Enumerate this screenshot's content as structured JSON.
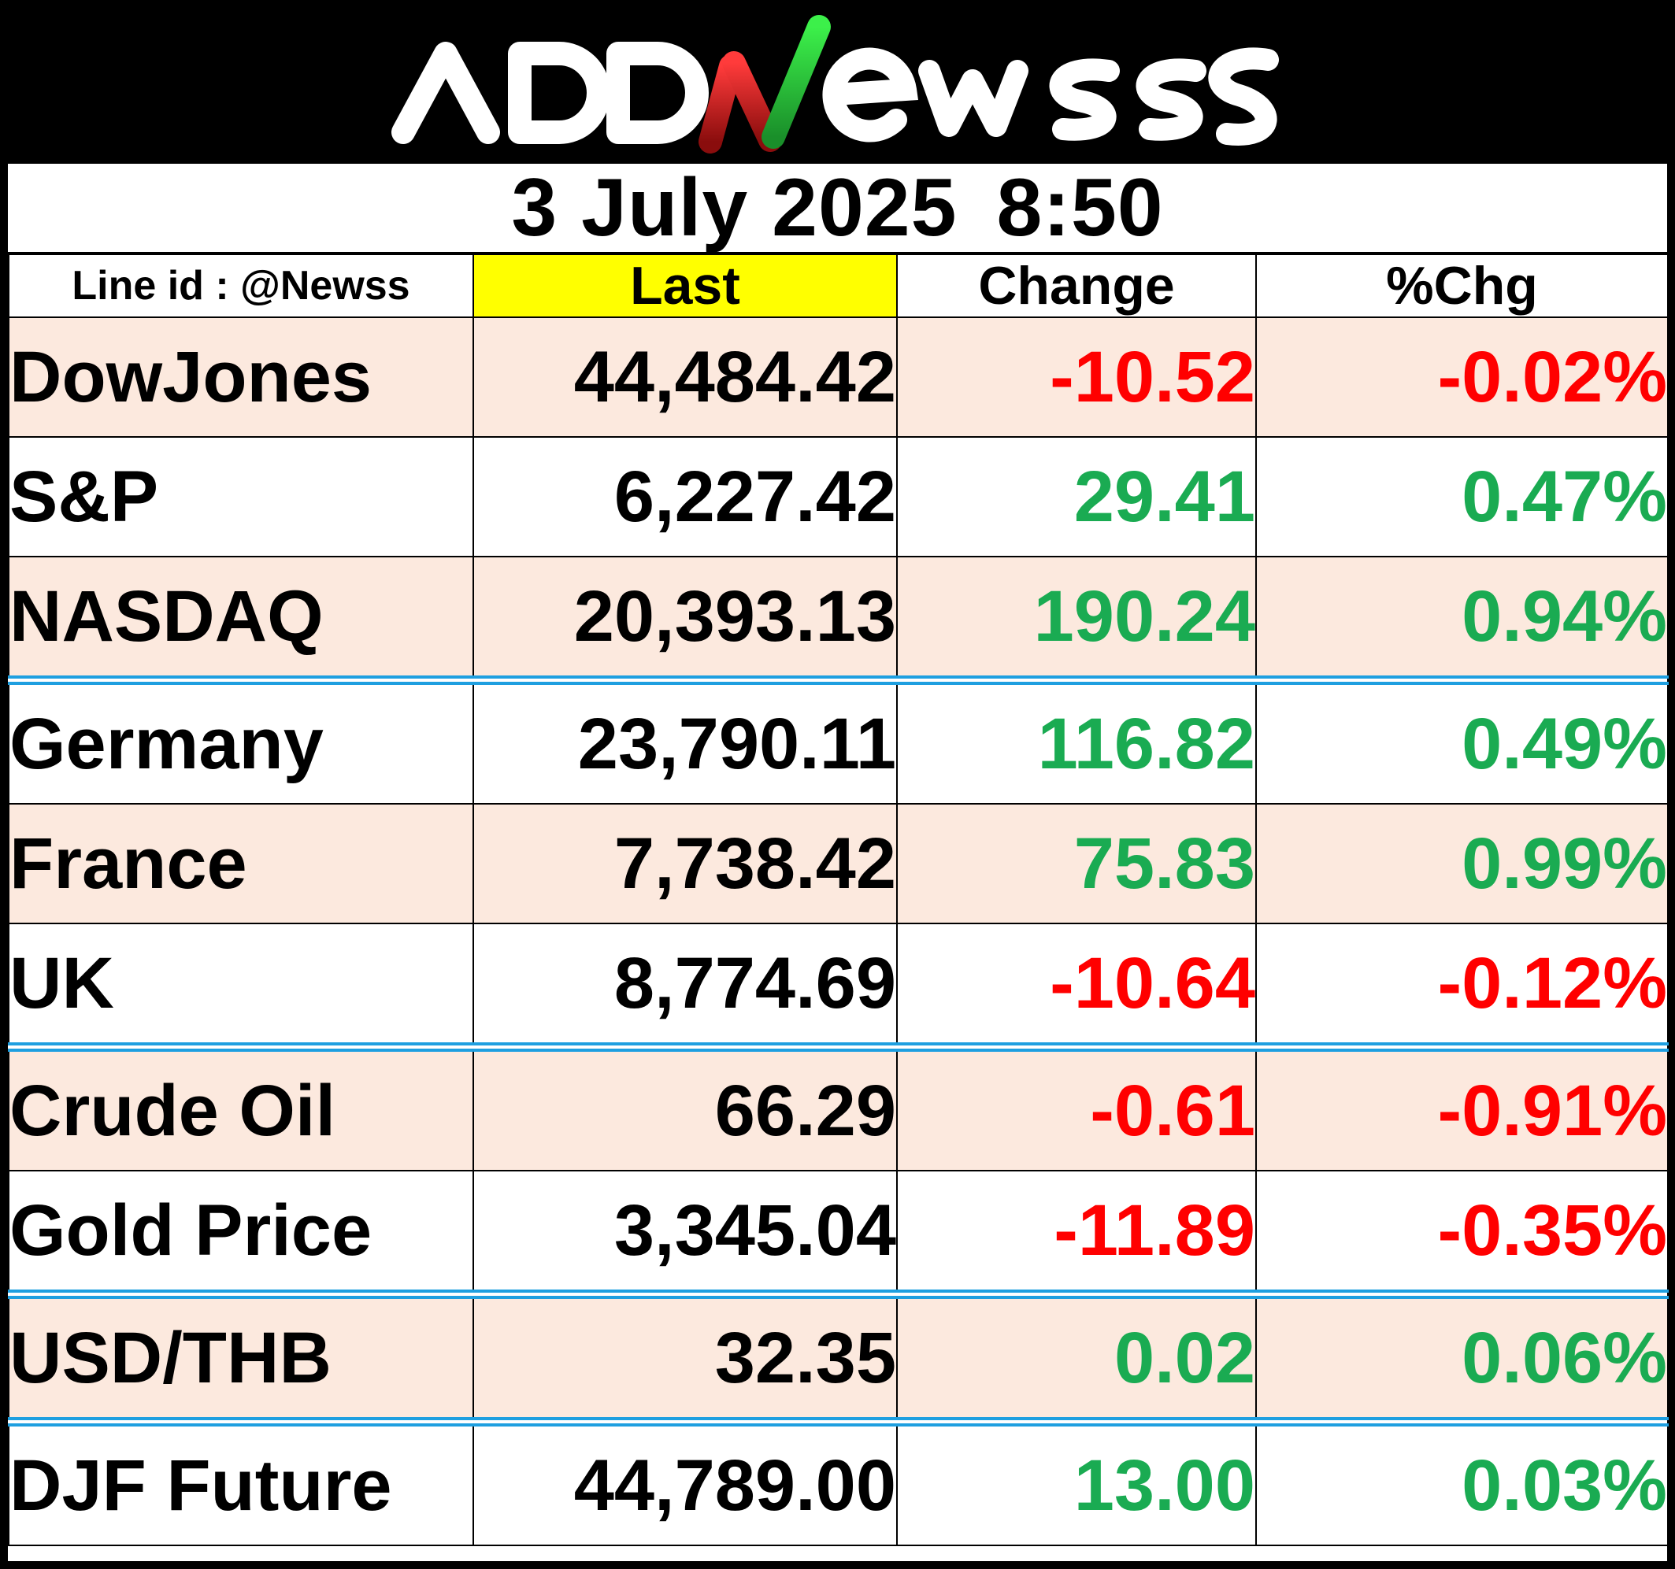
{
  "brand": {
    "logo_text": "ADDNewss",
    "colors": {
      "header_bg": "#000000",
      "logo_white": "#ffffff",
      "logo_red": "#e11d1d",
      "logo_green": "#2edb3a"
    }
  },
  "timestamp": {
    "date": "3 July 2025",
    "time": "8:50"
  },
  "columns": {
    "line_id": "Line id : @Newss",
    "last": "Last",
    "change": "Change",
    "pct_change": "%Chg"
  },
  "rows": [
    {
      "name": "DowJones",
      "last": "44,484.42",
      "change": "-10.52",
      "pct": "-0.02%",
      "direction": "down"
    },
    {
      "name": "S&P",
      "last": "6,227.42",
      "change": "29.41",
      "pct": "0.47%",
      "direction": "up"
    },
    {
      "name": "NASDAQ",
      "last": "20,393.13",
      "change": "190.24",
      "pct": "0.94%",
      "direction": "up"
    },
    {
      "name": "Germany",
      "last": "23,790.11",
      "change": "116.82",
      "pct": "0.49%",
      "direction": "up"
    },
    {
      "name": "France",
      "last": "7,738.42",
      "change": "75.83",
      "pct": "0.99%",
      "direction": "up"
    },
    {
      "name": "UK",
      "last": "8,774.69",
      "change": "-10.64",
      "pct": "-0.12%",
      "direction": "down"
    },
    {
      "name": "Crude Oil",
      "last": "66.29",
      "change": "-0.61",
      "pct": "-0.91%",
      "direction": "down"
    },
    {
      "name": "Gold Price",
      "last": "3,345.04",
      "change": "-11.89",
      "pct": "-0.35%",
      "direction": "down"
    },
    {
      "name": "USD/THB",
      "last": "32.35",
      "change": "0.02",
      "pct": "0.06%",
      "direction": "up"
    },
    {
      "name": "DJF Future",
      "last": "44,789.00",
      "change": "13.00",
      "pct": "0.03%",
      "direction": "up"
    }
  ],
  "colors": {
    "negative": "#ff0000",
    "positive": "#1aab52",
    "last_header_highlight": "#ffff00",
    "row_shade": "#fce9de",
    "group_separator": "#1e9fe0"
  }
}
